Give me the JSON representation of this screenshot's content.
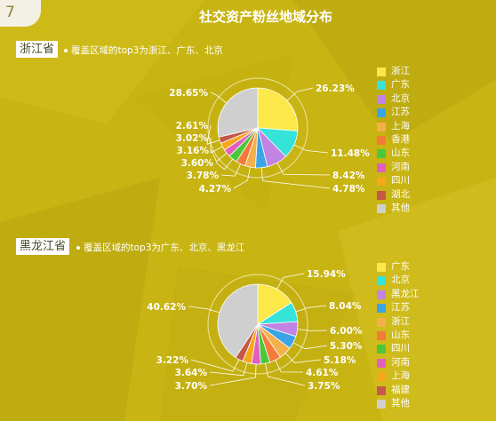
{
  "page_number": "7",
  "title": "社交资产粉丝地域分布",
  "colors": {
    "background": "#c8b412",
    "guangdong_yellow": "#fde84a",
    "cyan": "#35e3d8",
    "purple": "#c184e3",
    "blue": "#3aa4e6",
    "orange_light": "#f4b04a",
    "orange": "#f47a3a",
    "green": "#4ac83a",
    "magenta": "#e05fbf",
    "amber": "#f7a71a",
    "brown": "#c5584a",
    "gray": "#cfcfcf"
  },
  "chart_data": [
    {
      "type": "pie",
      "province": "浙江省",
      "description": "覆盖区域的top3为浙江、广东、北京",
      "categories": [
        "浙江",
        "广东",
        "北京",
        "江苏",
        "上海",
        "香港",
        "山东",
        "河南",
        "四川",
        "湖北",
        "其他"
      ],
      "values": [
        26.23,
        11.48,
        8.42,
        4.78,
        4.27,
        3.78,
        3.6,
        3.16,
        3.02,
        2.61,
        28.65
      ],
      "labels": [
        "26.23%",
        "11.48%",
        "8.42%",
        "4.78%",
        "4.27%",
        "3.78%",
        "3.60%",
        "3.16%",
        "3.02%",
        "2.61%",
        "28.65%"
      ],
      "colors": [
        "#fde84a",
        "#35e3d8",
        "#c184e3",
        "#3aa4e6",
        "#f4b04a",
        "#f47a3a",
        "#4ac83a",
        "#e05fbf",
        "#f7a71a",
        "#c5584a",
        "#cfcfcf"
      ],
      "legend_position": "right"
    },
    {
      "type": "pie",
      "province": "黑龙江省",
      "description": "覆盖区域的top3为广东、北京、黑龙江",
      "categories": [
        "广东",
        "北京",
        "黑龙江",
        "江苏",
        "浙江",
        "山东",
        "四川",
        "河南",
        "上海",
        "福建",
        "其他"
      ],
      "values": [
        15.94,
        8.04,
        6.0,
        5.3,
        5.18,
        4.61,
        3.75,
        3.7,
        3.64,
        3.22,
        40.62
      ],
      "labels": [
        "15.94%",
        "8.04%",
        "6.00%",
        "5.30%",
        "5.18%",
        "4.61%",
        "3.75%",
        "3.70%",
        "3.64%",
        "3.22%",
        "40.62%"
      ],
      "colors": [
        "#fde84a",
        "#35e3d8",
        "#c184e3",
        "#3aa4e6",
        "#f4b04a",
        "#f47a3a",
        "#4ac83a",
        "#e05fbf",
        "#f7a71a",
        "#c5584a",
        "#cfcfcf"
      ],
      "legend_position": "right"
    }
  ]
}
